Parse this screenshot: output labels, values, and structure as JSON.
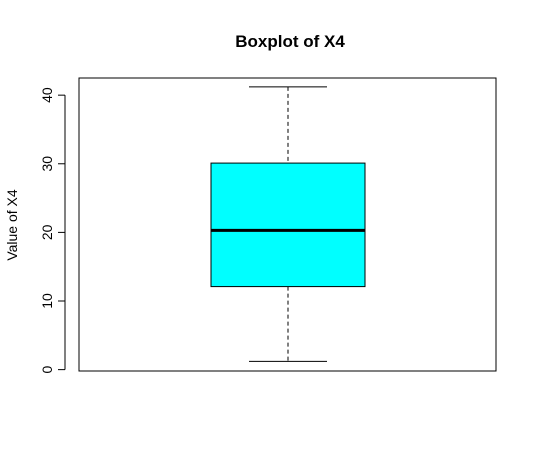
{
  "chart_data": {
    "type": "boxplot",
    "title": "Boxplot of X4",
    "ylabel": "Value of X4",
    "xlabel": "",
    "ylim": [
      -0.2,
      42.5
    ],
    "yticks": [
      0,
      10,
      20,
      30,
      40
    ],
    "grid": false,
    "box": {
      "whisker_low": 1.2,
      "q1": 12.1,
      "median": 20.3,
      "q3": 30.1,
      "whisker_high": 41.2
    },
    "colors": {
      "box_fill": "#00ffff",
      "stroke": "#000000"
    }
  }
}
